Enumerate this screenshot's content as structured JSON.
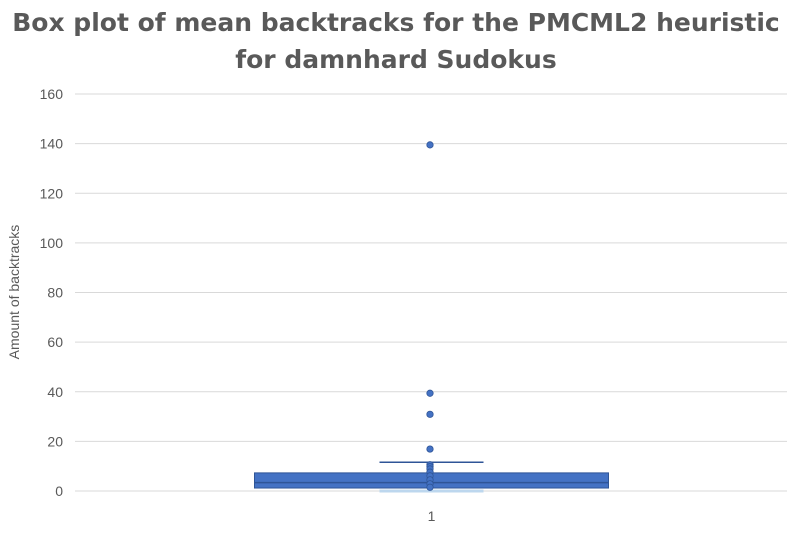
{
  "chart_data": {
    "type": "box",
    "title_lines": [
      "Box plot of mean backtracks for the PMCML2 heuristic",
      "for damnhard Sudokus"
    ],
    "ylabel": "Amount of backtracks",
    "categories": [
      "1"
    ],
    "ylim": [
      0,
      160
    ],
    "yticks": [
      0,
      20,
      40,
      60,
      80,
      100,
      120,
      140,
      160
    ],
    "grid": true,
    "legend": "none",
    "colors": {
      "box_fill": "#4472C4",
      "box_stroke": "#2F5597",
      "whisker": "#2F5597",
      "outlier": "#4472C4",
      "grid": "#D9D9D9"
    },
    "box": {
      "lower_whisker": 0,
      "q1": 1.2,
      "median": 3.4,
      "q3": 7.3,
      "upper_whisker": 11.6,
      "outliers": [
        139.5,
        39.4,
        30.9,
        16.9,
        10.6,
        9.8,
        8.9,
        7.6,
        6.1,
        4.5,
        2.9,
        1.5
      ]
    }
  }
}
